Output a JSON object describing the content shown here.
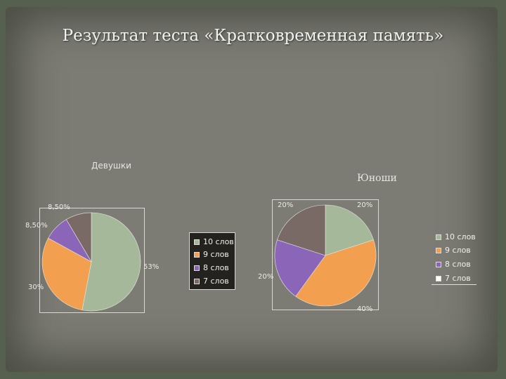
{
  "slide_title": "Результат  теста «Кратковременная память»",
  "chart_data": [
    {
      "type": "pie",
      "title": "Девушки",
      "categories": [
        "10 слов",
        "9 слов",
        "8 слов",
        "7 слов"
      ],
      "values": [
        53,
        30,
        8.5,
        8.5
      ],
      "labels": [
        "53%",
        "30%",
        "8,50%",
        "8,50%"
      ],
      "colors": [
        "#a5b89a",
        "#f2a04f",
        "#8b65b8",
        "#7a6a66"
      ],
      "legend": "right"
    },
    {
      "type": "pie",
      "title": "Юноши",
      "categories": [
        "10 слов",
        "9 слов",
        "8 слов",
        "7 слов"
      ],
      "values": [
        20,
        40,
        20,
        20
      ],
      "labels": [
        "20%",
        "40%",
        "20%",
        "20%"
      ],
      "colors": [
        "#a5b89a",
        "#f2a04f",
        "#8b65b8",
        "#7a6a66"
      ],
      "legend": "right"
    }
  ]
}
